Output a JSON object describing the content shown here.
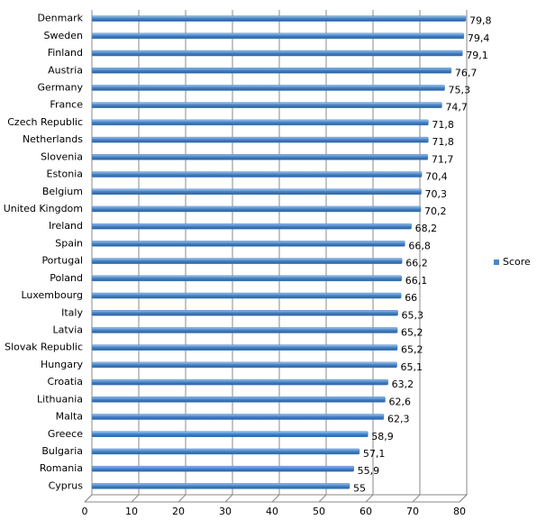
{
  "chart_data": {
    "type": "bar",
    "orientation": "horizontal",
    "categories": [
      "Denmark",
      "Sweden",
      "Finland",
      "Austria",
      "Germany",
      "France",
      "Czech Republic",
      "Netherlands",
      "Slovenia",
      "Estonia",
      "Belgium",
      "United Kingdom",
      "Ireland",
      "Spain",
      "Portugal",
      "Poland",
      "Luxembourg",
      "Italy",
      "Latvia",
      "Slovak Republic",
      "Hungary",
      "Croatia",
      "Lithuania",
      "Malta",
      "Greece",
      "Bulgaria",
      "Romania",
      "Cyprus"
    ],
    "series": [
      {
        "name": "Score",
        "color": "#4a86c8",
        "values": [
          79.8,
          79.4,
          79.1,
          76.7,
          75.3,
          74.7,
          71.8,
          71.8,
          71.7,
          70.4,
          70.3,
          70.2,
          68.2,
          66.8,
          66.2,
          66.1,
          66,
          65.3,
          65.2,
          65.2,
          65.1,
          63.2,
          62.6,
          62.3,
          58.9,
          57.1,
          55.9,
          55
        ],
        "value_labels": [
          "79,8",
          "79,4",
          "79,1",
          "76,7",
          "75,3",
          "74,7",
          "71,8",
          "71,8",
          "71,7",
          "70,4",
          "70,3",
          "70,2",
          "68,2",
          "66,8",
          "66,2",
          "66,1",
          "66",
          "65,3",
          "65,2",
          "65,2",
          "65,1",
          "63,2",
          "62,6",
          "62,3",
          "58,9",
          "57,1",
          "55,9",
          "55"
        ]
      }
    ],
    "xlim": [
      0,
      80
    ],
    "xticks": [
      0,
      10,
      20,
      30,
      40,
      50,
      60,
      70,
      80
    ],
    "grid": true,
    "legend": "right"
  }
}
